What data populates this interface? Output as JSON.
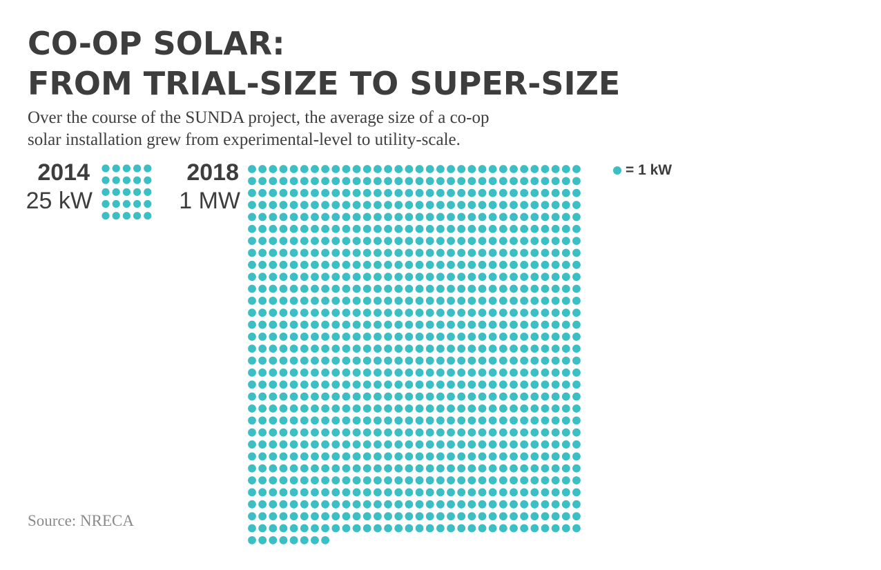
{
  "title_lines": [
    "CO-OP SOLAR:",
    "FROM TRIAL-SIZE TO SUPER-SIZE"
  ],
  "subtitle_lines": [
    "Over the course of the SUNDA project, the average size of a co-op",
    "solar installation grew from experimental-level to utility-scale."
  ],
  "legend_label": "= 1 kW",
  "source": "Source: NRECA",
  "colors": {
    "dot": "#3cbfc4",
    "text": "#3d3d3d",
    "source": "#8a8a8a"
  },
  "chart_data": {
    "type": "waffle",
    "unit": "1 kW per dot",
    "categories": [
      "2014",
      "2018"
    ],
    "values": [
      25,
      1000
    ],
    "labels": [
      "25 kW",
      "1 MW"
    ],
    "dots_per_row": [
      5,
      32
    ]
  }
}
